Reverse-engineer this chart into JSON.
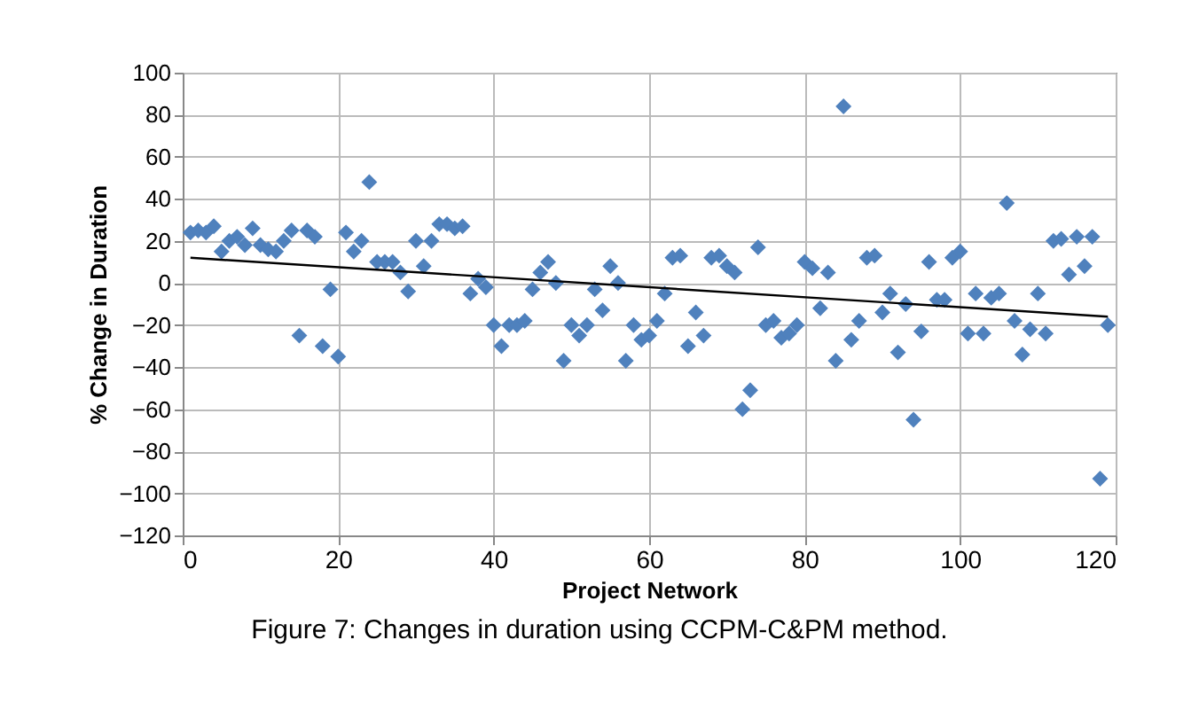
{
  "chart_data": {
    "type": "scatter",
    "xlabel": "Project Network",
    "ylabel": "% Change in Duration",
    "annotations": [
      "Figure 7: Changes in duration using CCPM-C&PM method."
    ],
    "xlim": [
      0,
      120
    ],
    "xticks": [
      0,
      20,
      40,
      60,
      80,
      100,
      120
    ],
    "ylim": [
      -120,
      100
    ],
    "yticks": [
      -120,
      -100,
      -80,
      -60,
      -40,
      -20,
      0,
      20,
      40,
      60,
      80,
      100
    ],
    "grid": true,
    "series": [
      {
        "color": "#4f81bd",
        "marker": "diamond",
        "x": [
          1,
          2,
          3,
          4,
          5,
          6,
          7,
          8,
          9,
          10,
          11,
          12,
          13,
          14,
          15,
          16,
          17,
          18,
          19,
          20,
          21,
          22,
          23,
          24,
          25,
          26,
          27,
          28,
          29,
          30,
          31,
          32,
          33,
          34,
          35,
          36,
          37,
          38,
          39,
          40,
          41,
          42,
          43,
          44,
          45,
          46,
          47,
          48,
          49,
          50,
          51,
          52,
          53,
          54,
          55,
          56,
          57,
          58,
          59,
          60,
          61,
          62,
          63,
          64,
          65,
          66,
          67,
          68,
          69,
          70,
          71,
          72,
          73,
          74,
          75,
          76,
          77,
          78,
          79,
          80,
          81,
          82,
          83,
          84,
          85,
          86,
          87,
          88,
          89,
          90,
          91,
          92,
          93,
          94,
          95,
          96,
          97,
          98,
          99,
          100,
          101,
          102,
          103,
          104,
          105,
          106,
          107,
          108,
          109,
          110,
          111,
          112,
          113,
          114,
          115,
          116,
          117,
          118,
          119
        ],
        "values": [
          24,
          25,
          24,
          27,
          15,
          20,
          22,
          18,
          26,
          18,
          16,
          15,
          20,
          25,
          -25,
          25,
          22,
          -30,
          -3,
          -35,
          24,
          15,
          20,
          48,
          10,
          10,
          10,
          5,
          -4,
          20,
          8,
          20,
          28,
          28,
          26,
          27,
          -5,
          2,
          -2,
          -20,
          -30,
          -20,
          -20,
          -18,
          -3,
          5,
          10,
          0,
          -37,
          -20,
          -25,
          -20,
          -3,
          -13,
          8,
          0,
          -37,
          -20,
          -27,
          -25,
          -18,
          -5,
          12,
          13,
          -30,
          -14,
          -25,
          12,
          13,
          8,
          5,
          -60,
          -51,
          17,
          -20,
          -18,
          -26,
          -24,
          -20,
          10,
          7,
          -12,
          5,
          -37,
          84,
          -27,
          -18,
          12,
          13,
          -14,
          -5,
          -33,
          -10,
          -65,
          -23,
          10,
          -8,
          -8,
          12,
          15,
          -24,
          -5,
          -24,
          -7,
          -5,
          38,
          -18,
          -34,
          -22,
          -5,
          -24,
          20,
          21,
          4,
          22,
          8,
          22,
          -93,
          -20
        ]
      },
      {
        "type": "line",
        "marker": "none",
        "color": "#000000",
        "x": [
          1,
          119
        ],
        "values": [
          12,
          -16
        ]
      }
    ]
  }
}
